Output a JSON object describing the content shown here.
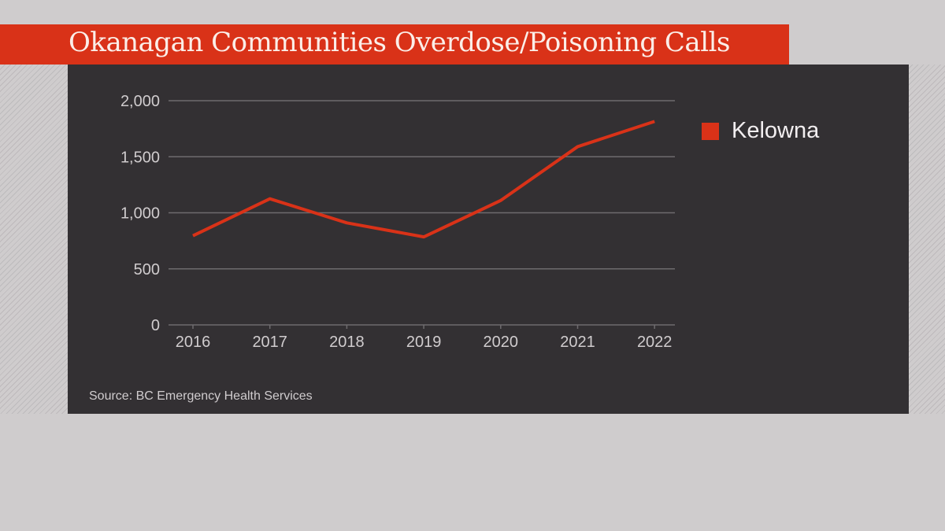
{
  "chart_data": {
    "type": "line",
    "title": "Okanagan Communities Overdose/Poisoning Calls",
    "categories": [
      "2016",
      "2017",
      "2018",
      "2019",
      "2020",
      "2021",
      "2022"
    ],
    "series": [
      {
        "name": "Kelowna",
        "values": [
          795,
          1125,
          910,
          785,
          1110,
          1590,
          1815
        ],
        "color": "#d93218"
      }
    ],
    "yticks": [
      0,
      500,
      1000,
      1500,
      2000
    ],
    "ytick_labels": [
      "0",
      "500",
      "1,000",
      "1,500",
      "2,000"
    ],
    "ylim": [
      0,
      2000
    ],
    "grid": true,
    "legend": "right",
    "source": "Source: BC Emergency Health Services"
  },
  "colors": {
    "accent": "#d93218",
    "panel": "#333033",
    "background": "#cfcccd"
  }
}
